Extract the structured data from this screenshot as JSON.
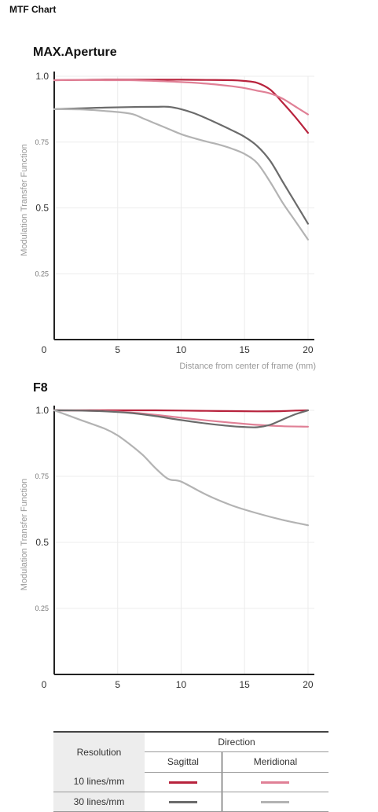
{
  "page": {
    "heading": "MTF Chart"
  },
  "chart_data": [
    {
      "type": "line",
      "title": "MAX.Aperture",
      "xlabel": "Distance from center of frame (mm)",
      "ylabel": "Modulation Transfer Function",
      "xlim": [
        0,
        20.5
      ],
      "ylim": [
        0,
        1.0
      ],
      "xticks": [
        "0",
        "5",
        "10",
        "15",
        "20"
      ],
      "yticks_major": [
        "1.0",
        "0.5"
      ],
      "yticks_minor": [
        "0.75",
        "0.25"
      ],
      "grid": true,
      "series": [
        {
          "name": "10 lines/mm",
          "direction": "Sagittal",
          "color": "#b8233d",
          "x": [
            0,
            2,
            4,
            6,
            8,
            10,
            12,
            14,
            15,
            16,
            17,
            18,
            19,
            20
          ],
          "y": [
            0.985,
            0.986,
            0.987,
            0.987,
            0.987,
            0.987,
            0.986,
            0.985,
            0.982,
            0.975,
            0.95,
            0.9,
            0.845,
            0.785
          ]
        },
        {
          "name": "10 lines/mm",
          "direction": "Meridional",
          "color": "#e08096",
          "x": [
            0,
            2,
            4,
            6,
            8,
            10,
            12,
            14,
            15,
            16,
            17,
            18,
            19,
            20
          ],
          "y": [
            0.985,
            0.986,
            0.985,
            0.985,
            0.982,
            0.978,
            0.972,
            0.962,
            0.955,
            0.945,
            0.935,
            0.915,
            0.885,
            0.855
          ]
        },
        {
          "name": "30 lines/mm",
          "direction": "Sagittal",
          "color": "#6b6b6b",
          "x": [
            0,
            2,
            4,
            6,
            8,
            9,
            10,
            11,
            12,
            13,
            14,
            15,
            16,
            17,
            18,
            19,
            20
          ],
          "y": [
            0.875,
            0.878,
            0.881,
            0.883,
            0.884,
            0.884,
            0.875,
            0.86,
            0.84,
            0.818,
            0.795,
            0.77,
            0.735,
            0.68,
            0.6,
            0.52,
            0.44
          ]
        },
        {
          "name": "30 lines/mm",
          "direction": "Meridional",
          "color": "#b3b3b3",
          "x": [
            0,
            2,
            4,
            6,
            7,
            8,
            9,
            10,
            11,
            12,
            13,
            14,
            15,
            16,
            17,
            18,
            19,
            20
          ],
          "y": [
            0.875,
            0.874,
            0.868,
            0.858,
            0.84,
            0.82,
            0.8,
            0.78,
            0.765,
            0.752,
            0.74,
            0.725,
            0.705,
            0.67,
            0.6,
            0.52,
            0.45,
            0.38
          ]
        }
      ]
    },
    {
      "type": "line",
      "title": "F8",
      "xlabel": "",
      "ylabel": "Modulation Transfer Function",
      "xlim": [
        0,
        20.5
      ],
      "ylim": [
        0,
        1.0
      ],
      "xticks": [
        "0",
        "5",
        "10",
        "15",
        "20"
      ],
      "yticks_major": [
        "1.0",
        "0.5"
      ],
      "yticks_minor": [
        "0.75",
        "0.25"
      ],
      "grid": true,
      "series": [
        {
          "name": "10 lines/mm",
          "direction": "Sagittal",
          "color": "#b8233d",
          "x": [
            0,
            2,
            4,
            6,
            8,
            10,
            12,
            14,
            16,
            18,
            19,
            20
          ],
          "y": [
            1.0,
            1.0,
            1.0,
            1.0,
            1.0,
            0.999,
            0.998,
            0.997,
            0.996,
            0.997,
            0.999,
            1.0
          ]
        },
        {
          "name": "10 lines/mm",
          "direction": "Meridional",
          "color": "#e08096",
          "x": [
            0,
            2,
            4,
            6,
            8,
            10,
            12,
            14,
            16,
            18,
            20
          ],
          "y": [
            1.0,
            0.999,
            0.997,
            0.992,
            0.983,
            0.972,
            0.962,
            0.953,
            0.945,
            0.94,
            0.938
          ]
        },
        {
          "name": "30 lines/mm",
          "direction": "Sagittal",
          "color": "#6b6b6b",
          "x": [
            0,
            2,
            4,
            6,
            8,
            10,
            12,
            14,
            15,
            16,
            17,
            18,
            19,
            20
          ],
          "y": [
            1.0,
            0.999,
            0.996,
            0.99,
            0.978,
            0.963,
            0.95,
            0.94,
            0.937,
            0.936,
            0.945,
            0.965,
            0.985,
            1.0
          ]
        },
        {
          "name": "30 lines/mm",
          "direction": "Meridional",
          "color": "#b3b3b3",
          "x": [
            0,
            2,
            4,
            5,
            6,
            7,
            8,
            9,
            10,
            12,
            14,
            16,
            18,
            20
          ],
          "y": [
            1.0,
            0.965,
            0.93,
            0.905,
            0.87,
            0.83,
            0.78,
            0.74,
            0.73,
            0.68,
            0.64,
            0.61,
            0.585,
            0.565
          ]
        }
      ]
    }
  ],
  "legend": {
    "resolution_header": "Resolution",
    "direction_header": "Direction",
    "sagittal_label": "Sagittal",
    "meridional_label": "Meridional",
    "rows": [
      {
        "label": "10 lines/mm",
        "sagittal_color": "#b8233d",
        "meridional_color": "#e08096"
      },
      {
        "label": "30 lines/mm",
        "sagittal_color": "#6b6b6b",
        "meridional_color": "#b3b3b3"
      }
    ]
  }
}
